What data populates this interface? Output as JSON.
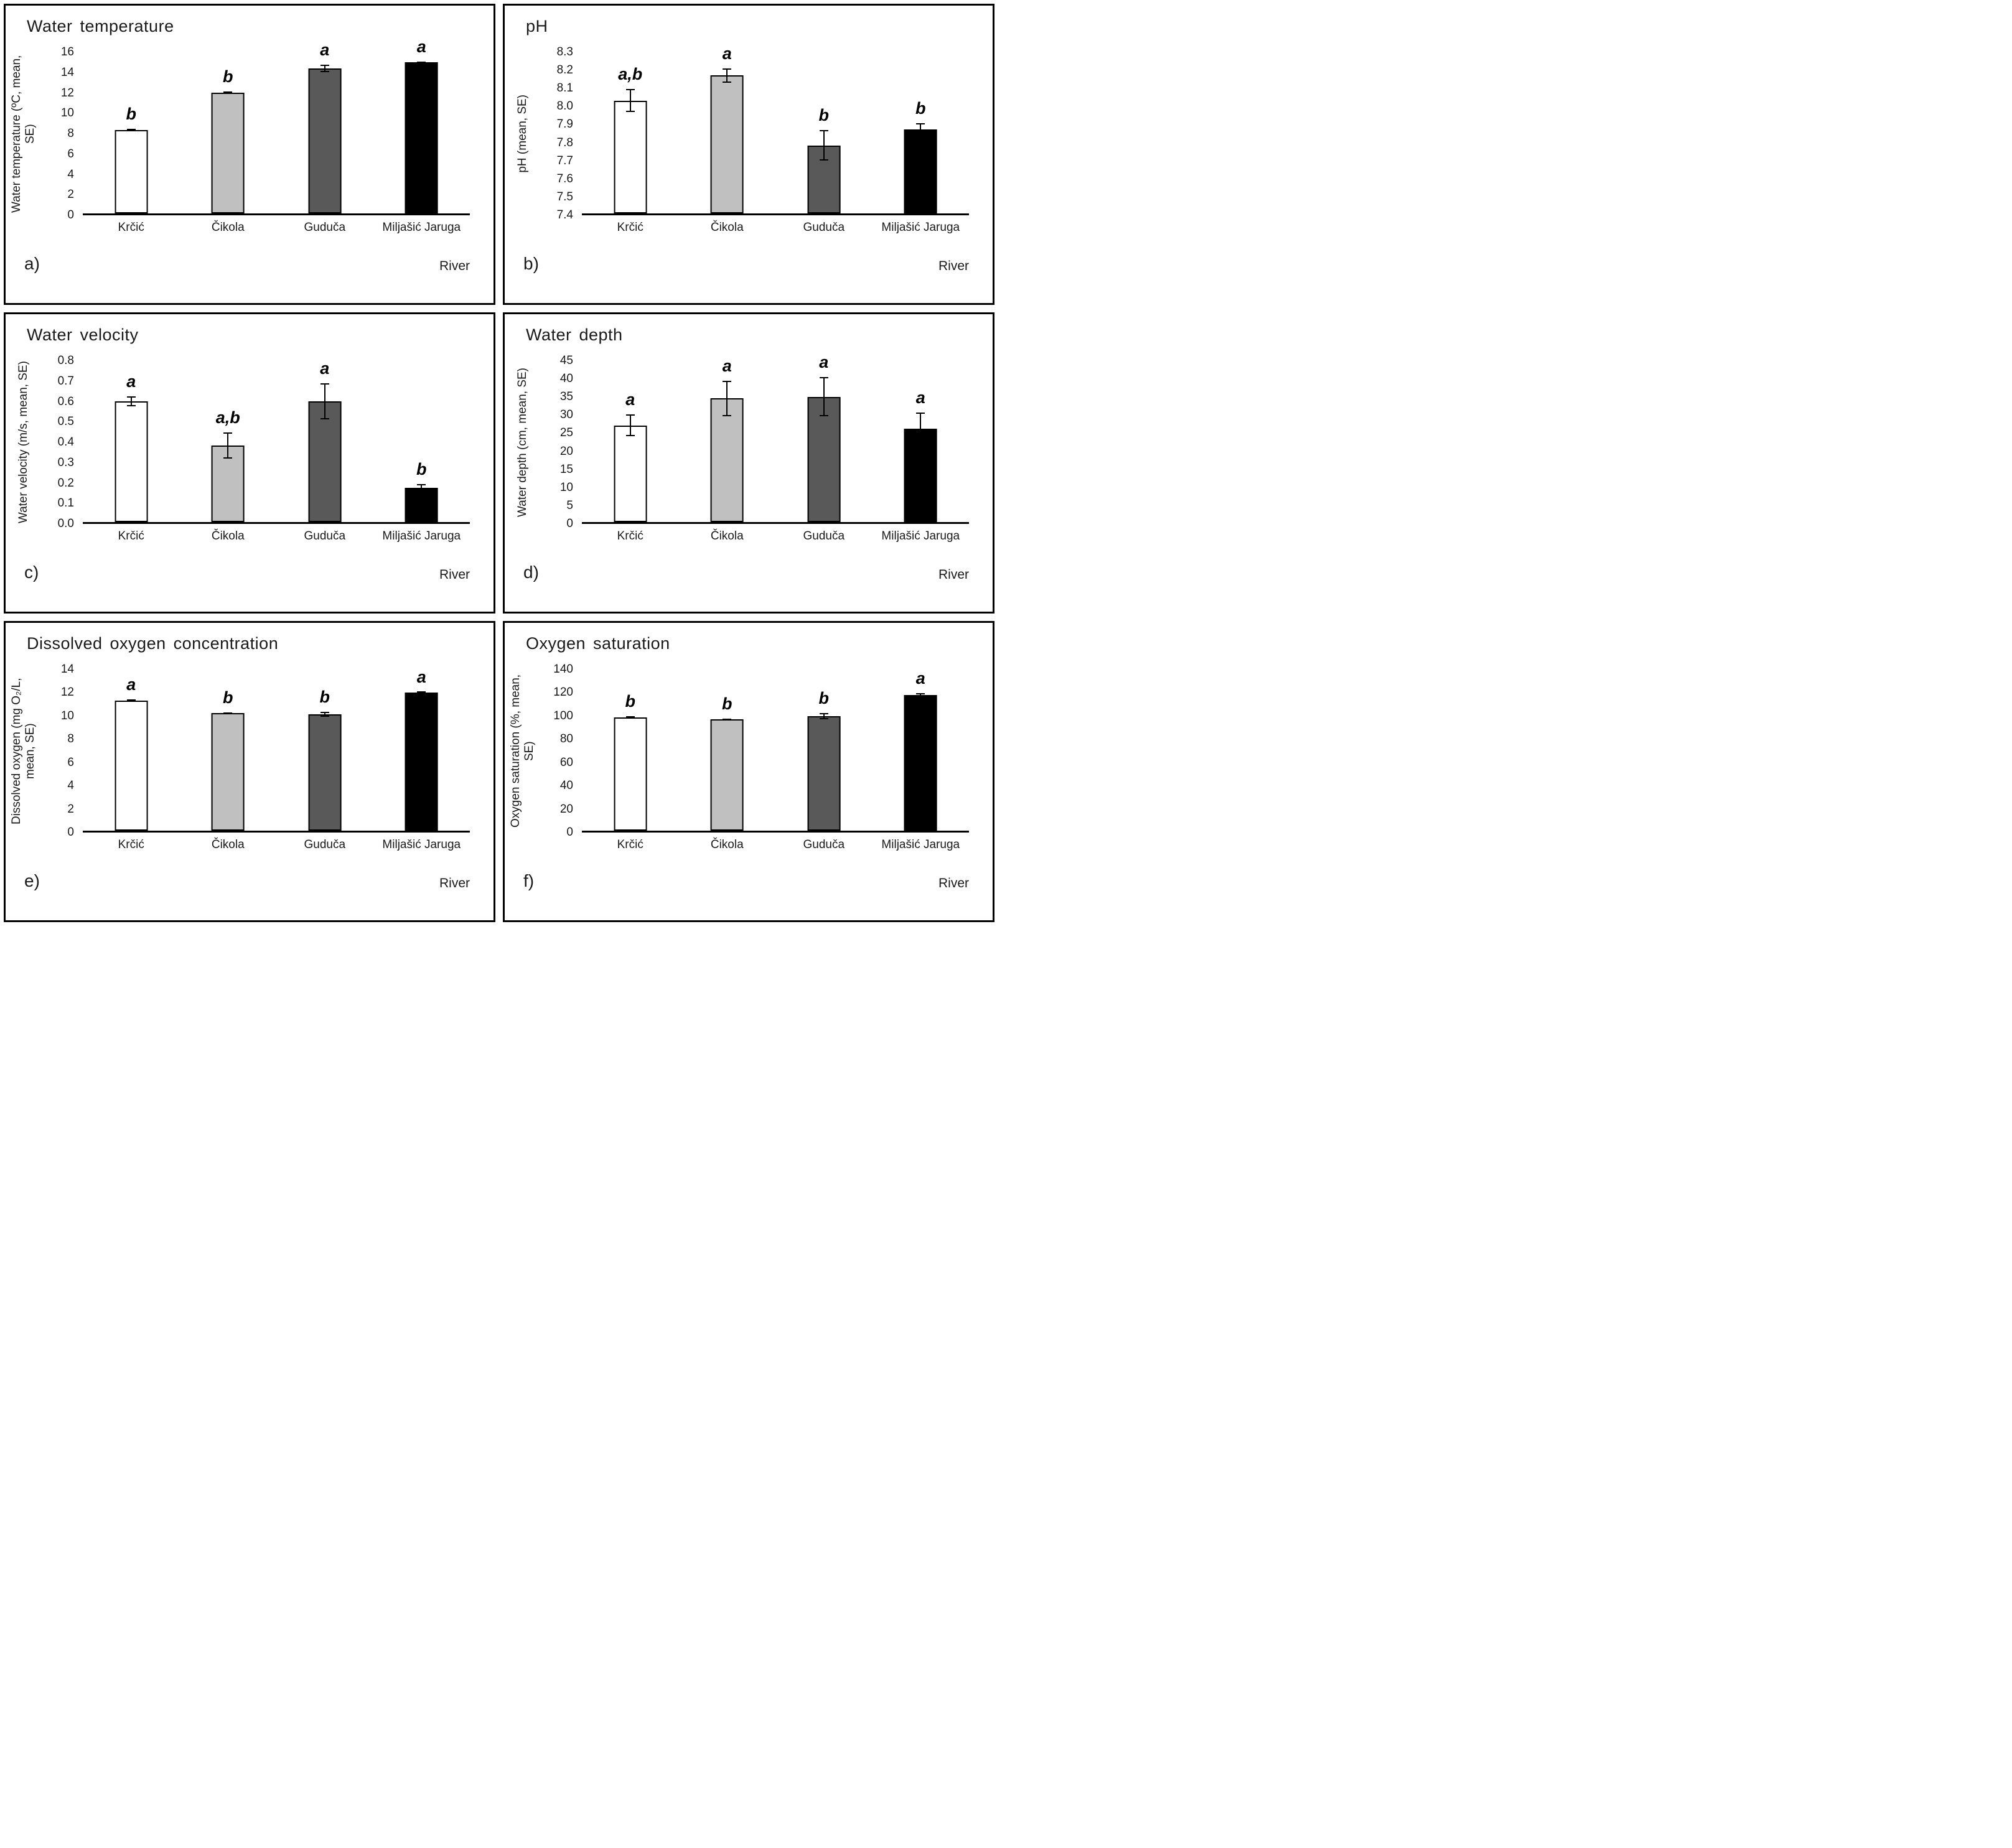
{
  "figure": {
    "x_axis_title": "River",
    "categories": [
      "Krčić",
      "Čikola",
      "Guduča",
      "Miljašić Jaruga"
    ],
    "bar_colors": [
      "#ffffff",
      "#c0c0c0",
      "#595959",
      "#000000"
    ],
    "bar_outline_color": "#000000"
  },
  "chart_data": [
    {
      "type": "bar",
      "panel_label": "a)",
      "title": "Water temperature",
      "ylabel": "Water temperature (ºC, mean, SE)",
      "xlabel": "River",
      "categories": [
        "Krčić",
        "Čikola",
        "Guduča",
        "Miljašić Jaruga"
      ],
      "values": [
        8.3,
        12.0,
        14.4,
        15.0
      ],
      "se": [
        0.1,
        0.1,
        0.35,
        0.1
      ],
      "sig_letters": [
        "b",
        "b",
        "a",
        "a"
      ],
      "ylim": [
        0,
        16
      ],
      "ytick_labels": [
        "0",
        "2",
        "4",
        "6",
        "8",
        "10",
        "12",
        "14",
        "16"
      ],
      "bar_colors": [
        "#ffffff",
        "#c0c0c0",
        "#595959",
        "#000000"
      ],
      "grid": false,
      "legend": false
    },
    {
      "type": "bar",
      "panel_label": "b)",
      "title": "pH",
      "ylabel": "pH (mean, SE)",
      "xlabel": "River",
      "categories": [
        "Krčić",
        "Čikola",
        "Guduča",
        "Miljašić Jaruga"
      ],
      "values": [
        8.03,
        8.17,
        7.78,
        7.87
      ],
      "se": [
        0.065,
        0.04,
        0.085,
        0.035
      ],
      "sig_letters": [
        "a,b",
        "a",
        "b",
        "b"
      ],
      "ylim": [
        7.4,
        8.3
      ],
      "ytick_labels": [
        "7.4",
        "7.5",
        "7.6",
        "7.7",
        "7.8",
        "7.9",
        "8.0",
        "8.1",
        "8.2",
        "8.3"
      ],
      "bar_colors": [
        "#ffffff",
        "#c0c0c0",
        "#595959",
        "#000000"
      ],
      "grid": false,
      "legend": false
    },
    {
      "type": "bar",
      "panel_label": "c)",
      "title": "Water velocity",
      "ylabel": "Water velocity (m/s, mean, SE)",
      "xlabel": "River",
      "categories": [
        "Krčić",
        "Čikola",
        "Guduča",
        "Miljašić Jaruga"
      ],
      "values": [
        0.6,
        0.38,
        0.6,
        0.17
      ],
      "se": [
        0.025,
        0.065,
        0.09,
        0.02
      ],
      "sig_letters": [
        "a",
        "a,b",
        "a",
        "b"
      ],
      "ylim": [
        0,
        0.8
      ],
      "ytick_labels": [
        "0.0",
        "0.1",
        "0.2",
        "0.3",
        "0.4",
        "0.5",
        "0.6",
        "0.7",
        "0.8"
      ],
      "bar_colors": [
        "#ffffff",
        "#c0c0c0",
        "#595959",
        "#000000"
      ],
      "grid": false,
      "legend": false
    },
    {
      "type": "bar",
      "panel_label": "d)",
      "title": "Water depth",
      "ylabel": "Water depth (cm, mean, SE)",
      "xlabel": "River",
      "categories": [
        "Krčić",
        "Čikola",
        "Guduča",
        "Miljašić Jaruga"
      ],
      "values": [
        27,
        34.5,
        35,
        26
      ],
      "se": [
        3,
        5,
        5.5,
        4.5
      ],
      "sig_letters": [
        "a",
        "a",
        "a",
        "a"
      ],
      "ylim": [
        0,
        45
      ],
      "ytick_labels": [
        "0",
        "5",
        "10",
        "15",
        "20",
        "25",
        "30",
        "35",
        "40",
        "45"
      ],
      "bar_colors": [
        "#ffffff",
        "#c0c0c0",
        "#595959",
        "#000000"
      ],
      "grid": false,
      "legend": false
    },
    {
      "type": "bar",
      "panel_label": "e)",
      "title": "Dissolved oxygen concentration",
      "ylabel": "Dissolved oxygen (mg O₂/L, mean, SE)",
      "xlabel": "River",
      "categories": [
        "Krčić",
        "Čikola",
        "Guduča",
        "Miljašić Jaruga"
      ],
      "values": [
        11.3,
        10.2,
        10.1,
        12.0
      ],
      "se": [
        0.08,
        0.07,
        0.2,
        0.08
      ],
      "sig_letters": [
        "a",
        "b",
        "b",
        "a"
      ],
      "ylim": [
        0,
        14
      ],
      "ytick_labels": [
        "0",
        "2",
        "4",
        "6",
        "8",
        "10",
        "12",
        "14"
      ],
      "bar_colors": [
        "#ffffff",
        "#c0c0c0",
        "#595959",
        "#000000"
      ],
      "grid": false,
      "legend": false
    },
    {
      "type": "bar",
      "panel_label": "f)",
      "title": "Oxygen saturation",
      "ylabel": "Oxygen saturation (%, mean, SE)",
      "xlabel": "River",
      "categories": [
        "Krčić",
        "Čikola",
        "Guduča",
        "Miljašić Jaruga"
      ],
      "values": [
        98.5,
        96.5,
        99.5,
        118
      ],
      "se": [
        1,
        1,
        2.5,
        1.2
      ],
      "sig_letters": [
        "b",
        "b",
        "b",
        "a"
      ],
      "ylim": [
        0,
        140
      ],
      "ytick_labels": [
        "0",
        "20",
        "40",
        "60",
        "80",
        "100",
        "120",
        "140"
      ],
      "bar_colors": [
        "#ffffff",
        "#c0c0c0",
        "#595959",
        "#000000"
      ],
      "grid": false,
      "legend": false
    }
  ]
}
